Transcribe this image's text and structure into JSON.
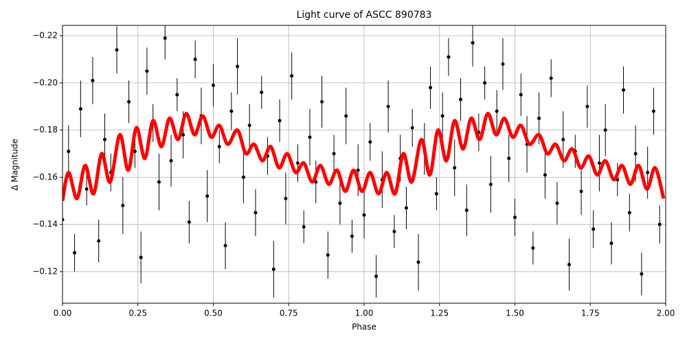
{
  "chart_data": {
    "type": "scatter",
    "title": "Light curve of ASCC 890783",
    "x_label": "Phase",
    "y_label": "Δ Magnitude",
    "xlim": [
      0,
      2
    ],
    "ylim": [
      -0.1066,
      -0.2244
    ],
    "grid": true,
    "xticks": [
      {
        "value": 0,
        "label": "0.00"
      },
      {
        "value": 0.25,
        "label": "0.25"
      },
      {
        "value": 0.5,
        "label": "0.50"
      },
      {
        "value": 0.75,
        "label": "0.75"
      },
      {
        "value": 1,
        "label": "1.00"
      },
      {
        "value": 1.25,
        "label": "1.25"
      },
      {
        "value": 1.5,
        "label": "1.50"
      },
      {
        "value": 1.75,
        "label": "1.75"
      },
      {
        "value": 2,
        "label": "2.00"
      }
    ],
    "yticks": [
      {
        "value": -0.12,
        "label": "−0.12"
      },
      {
        "value": -0.14,
        "label": "−0.14"
      },
      {
        "value": -0.16,
        "label": "−0.16"
      },
      {
        "value": -0.18,
        "label": "−0.18"
      },
      {
        "value": -0.2,
        "label": "−0.20"
      },
      {
        "value": -0.22,
        "label": "−0.22"
      }
    ],
    "series": [
      {
        "type": "errorbar",
        "color": "#000000",
        "x": [
          0,
          0.02,
          0.04,
          0.06,
          0.08,
          0.1,
          0.12,
          0.14,
          0.16,
          0.18,
          0.2,
          0.22,
          0.24,
          0.26,
          0.28,
          0.3,
          0.32,
          0.34,
          0.36,
          0.38,
          0.4,
          0.42,
          0.44,
          0.46,
          0.48,
          0.5,
          0.52,
          0.54,
          0.56,
          0.58,
          0.6,
          0.62,
          0.64,
          0.66,
          0.68,
          0.7,
          0.72,
          0.74,
          0.76,
          0.78,
          0.8,
          0.82,
          0.84,
          0.86,
          0.88,
          0.9,
          0.92,
          0.94,
          0.96,
          0.98,
          1,
          1.02,
          1.04,
          1.06,
          1.08,
          1.1,
          1.12,
          1.14,
          1.16,
          1.18,
          1.2,
          1.22,
          1.24,
          1.26,
          1.28,
          1.3,
          1.32,
          1.34,
          1.36,
          1.38,
          1.4,
          1.42,
          1.44,
          1.46,
          1.48,
          1.5,
          1.52,
          1.54,
          1.56,
          1.58,
          1.6,
          1.62,
          1.64,
          1.66,
          1.68,
          1.7,
          1.72,
          1.74,
          1.76,
          1.78,
          1.8,
          1.82,
          1.84,
          1.86,
          1.88,
          1.9,
          1.92,
          1.94,
          1.96,
          1.98
        ],
        "values": [
          -0.142,
          -0.171,
          -0.128,
          -0.189,
          -0.155,
          -0.201,
          -0.133,
          -0.176,
          -0.162,
          -0.214,
          -0.148,
          -0.192,
          -0.171,
          -0.126,
          -0.205,
          -0.183,
          -0.158,
          -0.219,
          -0.167,
          -0.195,
          -0.178,
          -0.141,
          -0.21,
          -0.186,
          -0.152,
          -0.199,
          -0.173,
          -0.131,
          -0.188,
          -0.207,
          -0.16,
          -0.182,
          -0.145,
          -0.196,
          -0.169,
          -0.121,
          -0.184,
          -0.151,
          -0.203,
          -0.166,
          -0.139,
          -0.177,
          -0.158,
          -0.192,
          -0.127,
          -0.17,
          -0.149,
          -0.186,
          -0.135,
          -0.163,
          -0.144,
          -0.175,
          -0.118,
          -0.159,
          -0.19,
          -0.137,
          -0.168,
          -0.147,
          -0.181,
          -0.124,
          -0.172,
          -0.198,
          -0.153,
          -0.186,
          -0.211,
          -0.164,
          -0.193,
          -0.146,
          -0.217,
          -0.179,
          -0.2,
          -0.157,
          -0.188,
          -0.208,
          -0.168,
          -0.143,
          -0.195,
          -0.174,
          -0.13,
          -0.185,
          -0.161,
          -0.202,
          -0.149,
          -0.176,
          -0.123,
          -0.171,
          -0.154,
          -0.19,
          -0.138,
          -0.166,
          -0.18,
          -0.132,
          -0.159,
          -0.197,
          -0.145,
          -0.17,
          -0.119,
          -0.162,
          -0.188,
          -0.14
        ],
        "errors": [
          0.009,
          0.011,
          0.008,
          0.012,
          0.007,
          0.01,
          0.009,
          0.011,
          0.008,
          0.01,
          0.012,
          0.009,
          0.007,
          0.011,
          0.01,
          0.008,
          0.012,
          0.009,
          0.011,
          0.007,
          0.01,
          0.009,
          0.008,
          0.012,
          0.011,
          0.009,
          0.007,
          0.01,
          0.008,
          0.012,
          0.011,
          0.009,
          0.01,
          0.007,
          0.008,
          0.012,
          0.009,
          0.011,
          0.01,
          0.008,
          0.007,
          0.012,
          0.009,
          0.011,
          0.01,
          0.008,
          0.009,
          0.012,
          0.007,
          0.011,
          0.01,
          0.008,
          0.009,
          0.012,
          0.011,
          0.007,
          0.01,
          0.009,
          0.008,
          0.012,
          0.011,
          0.009,
          0.007,
          0.01,
          0.008,
          0.012,
          0.009,
          0.011,
          0.01,
          0.008,
          0.007,
          0.012,
          0.009,
          0.011,
          0.01,
          0.008,
          0.009,
          0.012,
          0.007,
          0.011,
          0.01,
          0.008,
          0.009,
          0.012,
          0.011,
          0.007,
          0.01,
          0.009,
          0.008,
          0.012,
          0.011,
          0.009,
          0.007,
          0.01,
          0.008,
          0.012,
          0.009,
          0.011,
          0.01,
          0.008
        ]
      },
      {
        "type": "line",
        "color": "#ff0000",
        "x": [
          0,
          0.02,
          0.048,
          0.075,
          0.103,
          0.13,
          0.158,
          0.19,
          0.218,
          0.245,
          0.273,
          0.3,
          0.328,
          0.355,
          0.383,
          0.41,
          0.438,
          0.465,
          0.493,
          0.52,
          0.548,
          0.58,
          0.608,
          0.635,
          0.663,
          0.69,
          0.718,
          0.745,
          0.773,
          0.8,
          0.828,
          0.855,
          0.883,
          0.91,
          0.938,
          0.965,
          0.993,
          1.02,
          1.048,
          1.075,
          1.103,
          1.13,
          1.158,
          1.19,
          1.218,
          1.245,
          1.273,
          1.3,
          1.328,
          1.355,
          1.383,
          1.41,
          1.438,
          1.465,
          1.493,
          1.52,
          1.548,
          1.58,
          1.608,
          1.635,
          1.663,
          1.69,
          1.718,
          1.745,
          1.773,
          1.8,
          1.828,
          1.855,
          1.883,
          1.91,
          1.938,
          1.965,
          1.993
        ],
        "values": [
          -0.15,
          -0.162,
          -0.151,
          -0.165,
          -0.153,
          -0.17,
          -0.158,
          -0.178,
          -0.163,
          -0.181,
          -0.168,
          -0.184,
          -0.173,
          -0.185,
          -0.176,
          -0.187,
          -0.178,
          -0.186,
          -0.177,
          -0.182,
          -0.174,
          -0.18,
          -0.17,
          -0.174,
          -0.167,
          -0.173,
          -0.164,
          -0.17,
          -0.162,
          -0.166,
          -0.158,
          -0.165,
          -0.157,
          -0.163,
          -0.154,
          -0.163,
          -0.154,
          -0.162,
          -0.153,
          -0.162,
          -0.153,
          -0.17,
          -0.158,
          -0.176,
          -0.161,
          -0.18,
          -0.167,
          -0.184,
          -0.172,
          -0.185,
          -0.176,
          -0.187,
          -0.178,
          -0.185,
          -0.177,
          -0.182,
          -0.174,
          -0.178,
          -0.17,
          -0.174,
          -0.167,
          -0.172,
          -0.164,
          -0.169,
          -0.161,
          -0.167,
          -0.159,
          -0.165,
          -0.157,
          -0.165,
          -0.155,
          -0.164,
          -0.151
        ]
      }
    ]
  }
}
